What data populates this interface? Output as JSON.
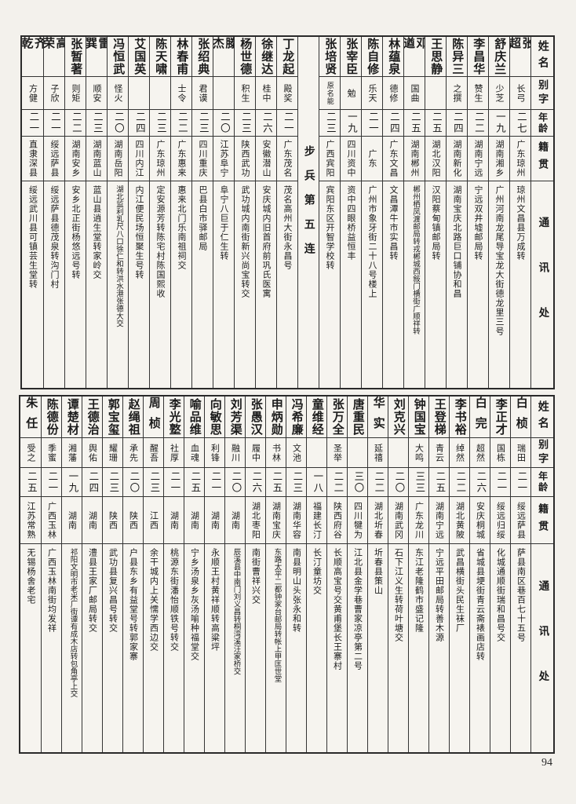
{
  "page": {
    "number": "94"
  },
  "headers": {
    "name": "姓名",
    "zi": "别字",
    "age": "年龄",
    "native": "籍贯",
    "contact": "通讯处"
  },
  "tables": [
    {
      "id": "top",
      "entries": [
        {
          "name": "张超",
          "zi": "长弓",
          "age": "二七",
          "native": "广东琼州",
          "addr": "琼州文昌县万成转"
        },
        {
          "name": "舒庆兰",
          "zi": "少芝",
          "age": "一九",
          "native": "湖南湘乡",
          "addr": "广州河南龙尾导宝龙大街德龙里三号"
        },
        {
          "name": "李昌华",
          "zi": "赞生",
          "age": "二二",
          "native": "湖南宁远",
          "addr": "宁远双井墟邮局转"
        },
        {
          "name": "陈异三",
          "zi": "之撰",
          "age": "二四",
          "native": "湖南新化",
          "addr": "湖南宝庆北路巨口铺协和昌"
        },
        {
          "name": "王思静",
          "zi": "",
          "age": "二五",
          "native": "湖北汉阳",
          "addr": "汉阳蔡甸镇邮局转"
        },
        {
          "name": "邓遒",
          "zi": "国曲",
          "age": "二五",
          "native": "湖南郴州",
          "addr": "郴州栖凤渡邮局转戎郴城西敍门横街广顺祥转"
        },
        {
          "name": "林蕴泉",
          "zi": "德修",
          "age": "二四",
          "native": "广东文昌",
          "addr": "文昌潭牛市实昌转"
        },
        {
          "name": "陈自修",
          "zi": "乐天",
          "age": "二一",
          "native": "广东",
          "addr": "广州市象牙街二十八号楼上"
        },
        {
          "name": "张宰臣",
          "zi": "勉",
          "age": "一九",
          "native": "四川资中",
          "addr": "资中四眼桥益恒丰"
        },
        {
          "name": "张培贤",
          "zi": "原名能",
          "age": "二三",
          "native": "广西宾阳",
          "addr": "宾阳东区开智学校转"
        },
        {
          "divider": "步兵第五连"
        },
        {
          "name": "丁龙起",
          "zi": "殿奖",
          "age": "二一",
          "native": "广东茂名",
          "addr": "茂名高州大街永昌号"
        },
        {
          "name": "徐继达",
          "zi": "桂中",
          "age": "二六",
          "native": "安徽潜山",
          "addr": "安庆城内旧首府前巩氏医寓"
        },
        {
          "name": "杨世德",
          "zi": "积生",
          "age": "二三",
          "native": "陕西武功",
          "addr": "武功城内南街新兴尚宝转交"
        },
        {
          "name": "滕杰",
          "zi": "",
          "age": "二〇",
          "native": "江苏阜宁",
          "addr": "阜宁八巨于仁生转"
        },
        {
          "name": "张绍典",
          "zi": "君谟",
          "age": "二三",
          "native": "四川重庆",
          "addr": "巴县白市驿邮局"
        },
        {
          "name": "林春甫",
          "zi": "士令",
          "age": "二二",
          "native": "广东惠来",
          "addr": "惠来北门乐南祖祠交"
        },
        {
          "name": "陈天啸",
          "zi": "",
          "age": "二三",
          "native": "广东琼州",
          "addr": "定安源芳转陈宅村陈国熙收"
        },
        {
          "name": "艾国英",
          "zi": "",
          "age": "二四",
          "native": "四川内江",
          "addr": "内江便民场恒聚生号转"
        },
        {
          "name": "冯恒武",
          "zi": "怪火",
          "age": "二〇",
          "native": "湖南岳阳",
          "addr": "湖北监利乳尺八口徐仁和转洪水港张德大交"
        },
        {
          "name": "雷巽",
          "zi": "顺安",
          "age": "二三",
          "native": "湖南蓝山",
          "addr": "蓝山县逍生堂转家岭交"
        },
        {
          "name": "张暂著",
          "zi": "则矩",
          "age": "二二",
          "native": "湖南安乡",
          "addr": "安乡北正街杨悠远号转"
        },
        {
          "name": "高荣",
          "zi": "子欣",
          "age": "二一",
          "native": "绥远萨县",
          "addr": "绥远萨县德茂泉转沟门村"
        },
        {
          "name": "齐乾",
          "zi": "方健",
          "age": "二一",
          "native": "直隶深县",
          "addr": "绥远武川县可镇芸生堂转"
        }
      ]
    },
    {
      "id": "bottom",
      "entries": [
        {
          "name": "白桢",
          "zi": "瑞田",
          "age": "二一",
          "native": "绥远萨县",
          "addr": "萨县南区巷百七十五号"
        },
        {
          "name": "李正才",
          "zi": "国栋",
          "age": "二一",
          "native": "绥远归绥",
          "addr": "化城通顺街瑞和昌号交"
        },
        {
          "name": "白完",
          "zi": "超然",
          "age": "二六",
          "native": "安庆桐城",
          "addr": "省城县埂街青云斋裱画店转"
        },
        {
          "name": "李书裕",
          "zi": "绰然",
          "age": "二二",
          "native": "湖北黄陂",
          "addr": "武昌横街头民生袜厂"
        },
        {
          "name": "王登梯",
          "zi": "青云",
          "age": "二五",
          "native": "湖南宁远",
          "addr": "宁远平田邮局转善木源"
        },
        {
          "name": "钟国宝",
          "zi": "大鸣",
          "age": "三三",
          "native": "广东龙川",
          "addr": "东江老隆鹤市盛记隆"
        },
        {
          "name": "刘克兴",
          "zi": "",
          "age": "二〇",
          "native": "湖南武冈",
          "addr": "石下江义生转荷叶塘交"
        },
        {
          "name": "华实",
          "zi": "延禧",
          "age": "二二",
          "native": "湖北圻春",
          "addr": "圻春县策山"
        },
        {
          "name": "唐重民",
          "zi": "",
          "age": "三〇",
          "native": "四川犍为",
          "addr": "江北县金学巷曹家凉亭第二号"
        },
        {
          "name": "张万全",
          "zi": "圣举",
          "age": "二二",
          "native": "陕西府谷",
          "addr": "长顺高宝号交黄甫堡长王寨村"
        },
        {
          "name": "童维经",
          "zi": "",
          "age": "一八",
          "native": "福建长汀",
          "addr": "长汀童坊交"
        },
        {
          "name": "冯希廉",
          "zi": "文池",
          "age": "二三",
          "native": "湖南华容",
          "addr": "南县明山头张永和转"
        },
        {
          "name": "申炳勋",
          "zi": "书林",
          "age": "二五",
          "native": "湖南宝庆",
          "addr": "东路太平二都钟家台邮局转帐上甲匡世堂"
        },
        {
          "name": "张愚汉",
          "zi": "履中",
          "age": "二六",
          "native": "湖北枣阳",
          "addr": "南街曹祥兴交"
        },
        {
          "name": "刘芳渠",
          "zi": "融川",
          "age": "二〇",
          "native": "湖南",
          "addr": "辰溪县中南门刘义昌转桐湾溪汪家桥交"
        },
        {
          "name": "向敏思",
          "zi": "利锋",
          "age": "二一",
          "native": "湖南",
          "addr": "永顺王村黄祥顺转高粱坪"
        },
        {
          "name": "喻品维",
          "zi": "血魂",
          "age": "二五",
          "native": "湖南",
          "addr": "宁乡汤泉乡灰汤喻种福堂交"
        },
        {
          "name": "李光墪",
          "zi": "社厚",
          "age": "二一",
          "native": "湖南",
          "addr": "桃源东街潘怡顺铁号转交"
        },
        {
          "name": "周桢",
          "zi": "醒吾",
          "age": "二三",
          "native": "江西",
          "addr": "余干城内上关懦学西边交"
        },
        {
          "name": "赵绳祖",
          "zi": "承先",
          "age": "二〇",
          "native": "陕西",
          "addr": "户县东乡有益堂号转郭家寨"
        },
        {
          "name": "郭宝玺",
          "zi": "耀珊",
          "age": "二三",
          "native": "陕西",
          "addr": "武功县复兴昌号转交"
        },
        {
          "name": "王德治",
          "zi": "舆佑",
          "age": "二四",
          "native": "湖南",
          "addr": "澧县王家厂邮局转交"
        },
        {
          "name": "谭楚材",
          "zi": "湘藩",
          "age": "一九",
          "native": "湖南",
          "addr": "祁阳文明市老米厂街谭有成木店转包角亭上交"
        },
        {
          "name": "陈德份",
          "zi": "季蜜",
          "age": "二一",
          "native": "广西玉林",
          "addr": "广西玉林南街均发祥"
        },
        {
          "name": "朱任",
          "zi": "受之",
          "age": "二五",
          "native": "江苏常熟",
          "addr": "无锡杨舍老宅"
        }
      ]
    }
  ]
}
